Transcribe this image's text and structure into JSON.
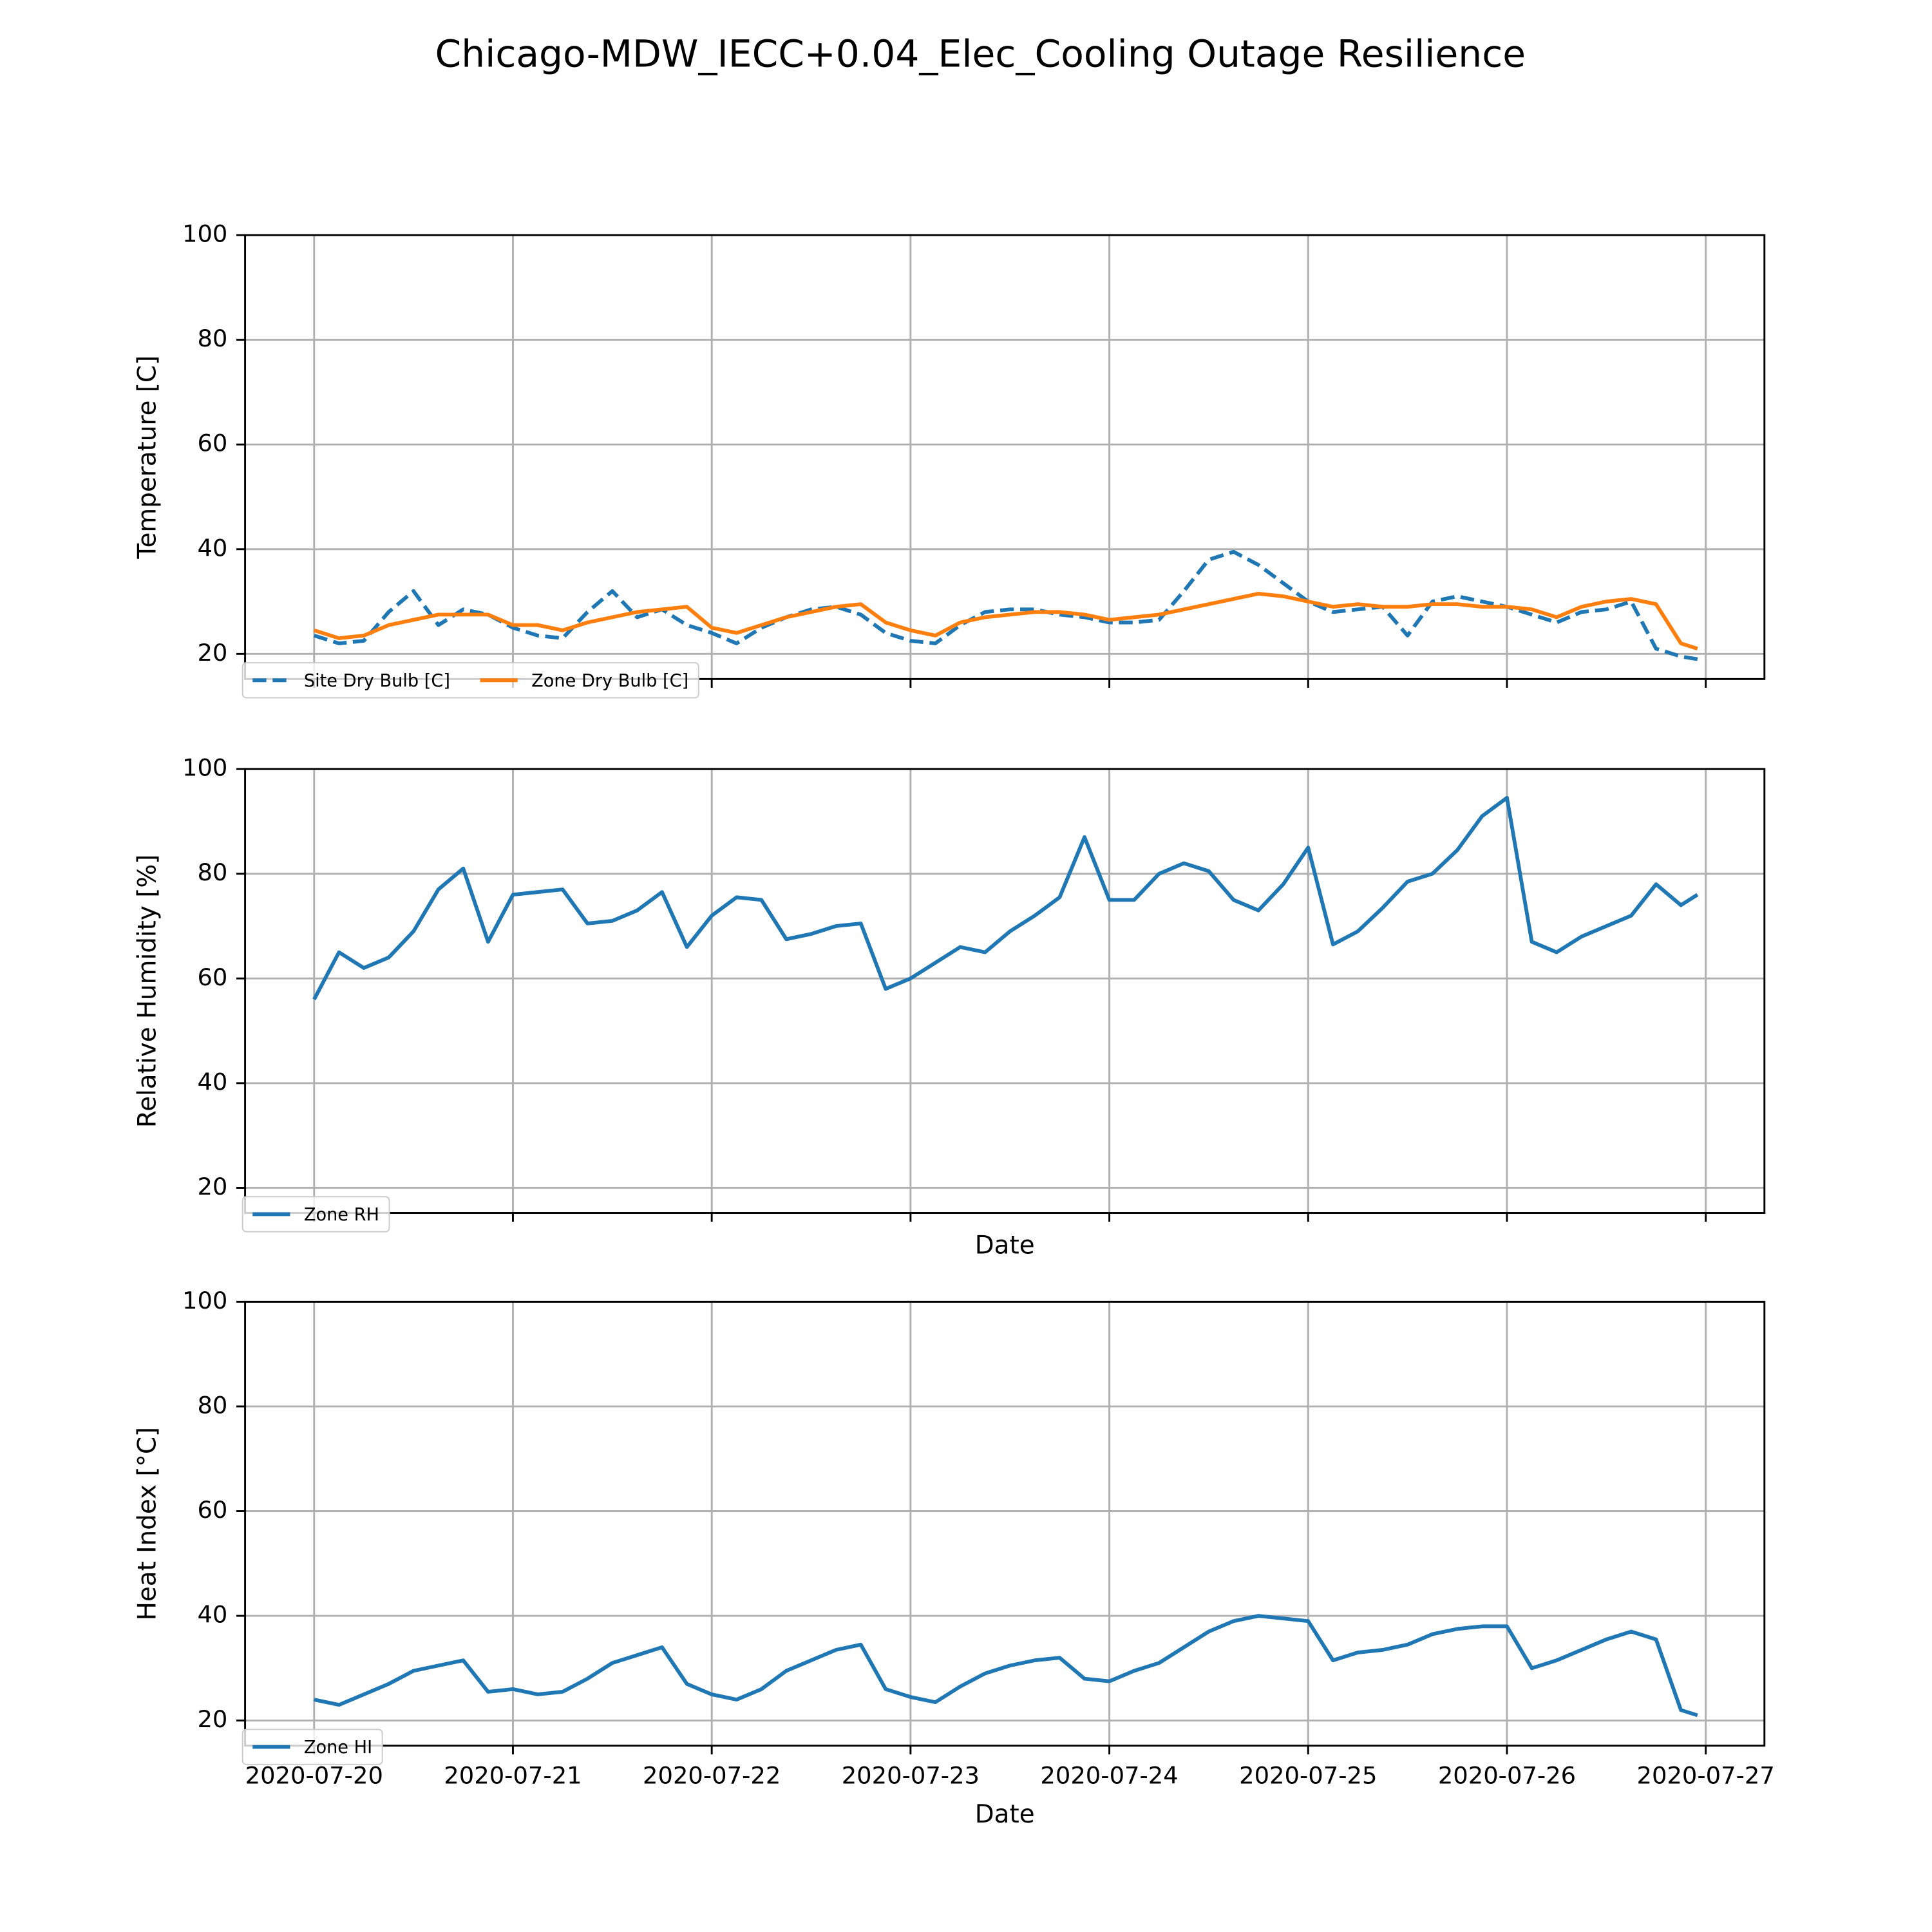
{
  "title": "Chicago-MDW_IECC+0.04_Elec_Cooling Outage Resilience",
  "chart_data": [
    {
      "type": "line",
      "ylabel": "Temperature [C]",
      "xlim": [
        "2020-07-19 15:40",
        "2020-07-27 07:05"
      ],
      "xticks": [
        "2020-07-20",
        "2020-07-21",
        "2020-07-22",
        "2020-07-23",
        "2020-07-24",
        "2020-07-25",
        "2020-07-26",
        "2020-07-27"
      ],
      "xtick_labels": false,
      "ylim": [
        15.2,
        100
      ],
      "yticks": [
        20,
        40,
        60,
        80,
        100
      ],
      "grid": true,
      "legend": "lower left",
      "x": [
        "2020-07-20 00:00",
        "2020-07-20 03:00",
        "2020-07-20 06:00",
        "2020-07-20 09:00",
        "2020-07-20 12:00",
        "2020-07-20 15:00",
        "2020-07-20 18:00",
        "2020-07-20 21:00",
        "2020-07-21 00:00",
        "2020-07-21 03:00",
        "2020-07-21 06:00",
        "2020-07-21 09:00",
        "2020-07-21 12:00",
        "2020-07-21 15:00",
        "2020-07-21 18:00",
        "2020-07-21 21:00",
        "2020-07-22 00:00",
        "2020-07-22 03:00",
        "2020-07-22 06:00",
        "2020-07-22 09:00",
        "2020-07-22 12:00",
        "2020-07-22 15:00",
        "2020-07-22 18:00",
        "2020-07-22 21:00",
        "2020-07-23 00:00",
        "2020-07-23 03:00",
        "2020-07-23 06:00",
        "2020-07-23 09:00",
        "2020-07-23 12:00",
        "2020-07-23 15:00",
        "2020-07-23 18:00",
        "2020-07-23 21:00",
        "2020-07-24 00:00",
        "2020-07-24 03:00",
        "2020-07-24 06:00",
        "2020-07-24 09:00",
        "2020-07-24 12:00",
        "2020-07-24 15:00",
        "2020-07-24 18:00",
        "2020-07-24 21:00",
        "2020-07-25 00:00",
        "2020-07-25 03:00",
        "2020-07-25 06:00",
        "2020-07-25 09:00",
        "2020-07-25 12:00",
        "2020-07-25 15:00",
        "2020-07-25 18:00",
        "2020-07-25 21:00",
        "2020-07-26 00:00",
        "2020-07-26 03:00",
        "2020-07-26 06:00",
        "2020-07-26 09:00",
        "2020-07-26 12:00",
        "2020-07-26 15:00",
        "2020-07-26 18:00",
        "2020-07-26 21:00",
        "2020-07-26 23:00"
      ],
      "series": [
        {
          "name": "Site Dry Bulb [C]",
          "color": "#1f77b4",
          "linestyle": "dashed",
          "values": [
            23.5,
            22,
            22.5,
            28,
            32,
            25.5,
            28.5,
            27.5,
            25,
            23.5,
            23,
            28,
            32,
            27,
            28.5,
            25.5,
            24,
            22,
            25,
            27,
            28.5,
            29,
            27.5,
            24,
            22.5,
            22,
            25.5,
            28,
            28.5,
            28.5,
            27.5,
            27,
            26,
            26,
            26.5,
            32,
            38,
            39.5,
            37,
            33.5,
            30,
            28,
            28.5,
            29,
            23.5,
            30,
            31,
            30,
            29,
            27.5,
            26,
            28,
            28.5,
            30,
            21,
            19.5,
            19
          ]
        },
        {
          "name": "Zone Dry Bulb [C]",
          "color": "#ff7f0e",
          "linestyle": "solid",
          "values": [
            24.5,
            23,
            23.5,
            25.5,
            26.5,
            27.5,
            27.5,
            27.5,
            25.5,
            25.5,
            24.5,
            26,
            27,
            28,
            28.5,
            29,
            25,
            24,
            25.5,
            27,
            28,
            29,
            29.5,
            26,
            24.5,
            23.5,
            26,
            27,
            27.5,
            28,
            28,
            27.5,
            26.5,
            27,
            27.5,
            28.5,
            29.5,
            30.5,
            31.5,
            31,
            30,
            29,
            29.5,
            29,
            29,
            29.5,
            29.5,
            29,
            29,
            28.5,
            27,
            29,
            30,
            30.5,
            29.5,
            22,
            21
          ]
        }
      ]
    },
    {
      "type": "line",
      "ylabel": "Relative Humidity [%]",
      "xlabel": "Date",
      "xlim": [
        "2020-07-19 15:40",
        "2020-07-27 07:05"
      ],
      "xticks": [
        "2020-07-20",
        "2020-07-21",
        "2020-07-22",
        "2020-07-23",
        "2020-07-24",
        "2020-07-25",
        "2020-07-26",
        "2020-07-27"
      ],
      "xtick_labels": false,
      "ylim": [
        15.2,
        100
      ],
      "yticks": [
        20,
        40,
        60,
        80,
        100
      ],
      "grid": true,
      "legend": "lower left",
      "x": [
        "2020-07-20 00:00",
        "2020-07-20 03:00",
        "2020-07-20 06:00",
        "2020-07-20 09:00",
        "2020-07-20 12:00",
        "2020-07-20 15:00",
        "2020-07-20 18:00",
        "2020-07-20 21:00",
        "2020-07-21 00:00",
        "2020-07-21 03:00",
        "2020-07-21 06:00",
        "2020-07-21 09:00",
        "2020-07-21 12:00",
        "2020-07-21 15:00",
        "2020-07-21 18:00",
        "2020-07-21 21:00",
        "2020-07-22 00:00",
        "2020-07-22 03:00",
        "2020-07-22 06:00",
        "2020-07-22 09:00",
        "2020-07-22 12:00",
        "2020-07-22 15:00",
        "2020-07-22 18:00",
        "2020-07-22 21:00",
        "2020-07-23 00:00",
        "2020-07-23 03:00",
        "2020-07-23 06:00",
        "2020-07-23 09:00",
        "2020-07-23 12:00",
        "2020-07-23 15:00",
        "2020-07-23 18:00",
        "2020-07-23 21:00",
        "2020-07-24 00:00",
        "2020-07-24 03:00",
        "2020-07-24 06:00",
        "2020-07-24 09:00",
        "2020-07-24 12:00",
        "2020-07-24 15:00",
        "2020-07-24 18:00",
        "2020-07-24 21:00",
        "2020-07-25 00:00",
        "2020-07-25 03:00",
        "2020-07-25 06:00",
        "2020-07-25 09:00",
        "2020-07-25 12:00",
        "2020-07-25 15:00",
        "2020-07-25 18:00",
        "2020-07-25 21:00",
        "2020-07-26 00:00",
        "2020-07-26 03:00",
        "2020-07-26 06:00",
        "2020-07-26 09:00",
        "2020-07-26 12:00",
        "2020-07-26 15:00",
        "2020-07-26 18:00",
        "2020-07-26 21:00",
        "2020-07-26 23:00"
      ],
      "series": [
        {
          "name": "Zone RH",
          "color": "#1f77b4",
          "linestyle": "solid",
          "values": [
            56,
            65,
            62,
            64,
            69,
            77,
            81,
            67,
            76,
            76.5,
            77,
            70.5,
            71,
            73,
            76.5,
            66,
            72,
            75.5,
            75,
            67.5,
            68.5,
            70,
            70.5,
            58,
            60,
            63,
            66,
            65,
            69,
            72,
            75.5,
            87,
            75,
            75,
            80,
            82,
            80.5,
            75,
            73,
            78,
            85,
            66.5,
            69,
            73.5,
            78.5,
            80,
            84.5,
            91,
            94.5,
            67,
            65,
            68,
            70,
            72,
            78,
            74,
            76
          ]
        }
      ]
    },
    {
      "type": "line",
      "ylabel": "Heat Index [°C]",
      "xlabel": "Date",
      "xlim": [
        "2020-07-19 15:40",
        "2020-07-27 07:05"
      ],
      "xticks": [
        "2020-07-20",
        "2020-07-21",
        "2020-07-22",
        "2020-07-23",
        "2020-07-24",
        "2020-07-25",
        "2020-07-26",
        "2020-07-27"
      ],
      "xtick_labels": true,
      "ylim": [
        15.2,
        100
      ],
      "yticks": [
        20,
        40,
        60,
        80,
        100
      ],
      "grid": true,
      "legend": "lower left",
      "x": [
        "2020-07-20 00:00",
        "2020-07-20 03:00",
        "2020-07-20 06:00",
        "2020-07-20 09:00",
        "2020-07-20 12:00",
        "2020-07-20 15:00",
        "2020-07-20 18:00",
        "2020-07-20 21:00",
        "2020-07-21 00:00",
        "2020-07-21 03:00",
        "2020-07-21 06:00",
        "2020-07-21 09:00",
        "2020-07-21 12:00",
        "2020-07-21 15:00",
        "2020-07-21 18:00",
        "2020-07-21 21:00",
        "2020-07-22 00:00",
        "2020-07-22 03:00",
        "2020-07-22 06:00",
        "2020-07-22 09:00",
        "2020-07-22 12:00",
        "2020-07-22 15:00",
        "2020-07-22 18:00",
        "2020-07-22 21:00",
        "2020-07-23 00:00",
        "2020-07-23 03:00",
        "2020-07-23 06:00",
        "2020-07-23 09:00",
        "2020-07-23 12:00",
        "2020-07-23 15:00",
        "2020-07-23 18:00",
        "2020-07-23 21:00",
        "2020-07-24 00:00",
        "2020-07-24 03:00",
        "2020-07-24 06:00",
        "2020-07-24 09:00",
        "2020-07-24 12:00",
        "2020-07-24 15:00",
        "2020-07-24 18:00",
        "2020-07-24 21:00",
        "2020-07-25 00:00",
        "2020-07-25 03:00",
        "2020-07-25 06:00",
        "2020-07-25 09:00",
        "2020-07-25 12:00",
        "2020-07-25 15:00",
        "2020-07-25 18:00",
        "2020-07-25 21:00",
        "2020-07-26 00:00",
        "2020-07-26 03:00",
        "2020-07-26 06:00",
        "2020-07-26 09:00",
        "2020-07-26 12:00",
        "2020-07-26 15:00",
        "2020-07-26 18:00",
        "2020-07-26 21:00",
        "2020-07-26 23:00"
      ],
      "series": [
        {
          "name": "Zone HI",
          "color": "#1f77b4",
          "linestyle": "solid",
          "values": [
            24,
            23,
            25,
            27,
            29.5,
            30.5,
            31.5,
            25.5,
            26,
            25,
            25.5,
            28,
            31,
            32.5,
            34,
            27,
            25,
            24,
            26,
            29.5,
            31.5,
            33.5,
            34.5,
            26,
            24.5,
            23.5,
            26.5,
            29,
            30.5,
            31.5,
            32,
            28,
            27.5,
            29.5,
            31,
            34,
            37,
            39,
            40,
            39.5,
            39,
            31.5,
            33,
            33.5,
            34.5,
            36.5,
            37.5,
            38,
            38,
            30,
            31.5,
            33.5,
            35.5,
            37,
            35.5,
            22,
            21
          ]
        }
      ]
    }
  ]
}
